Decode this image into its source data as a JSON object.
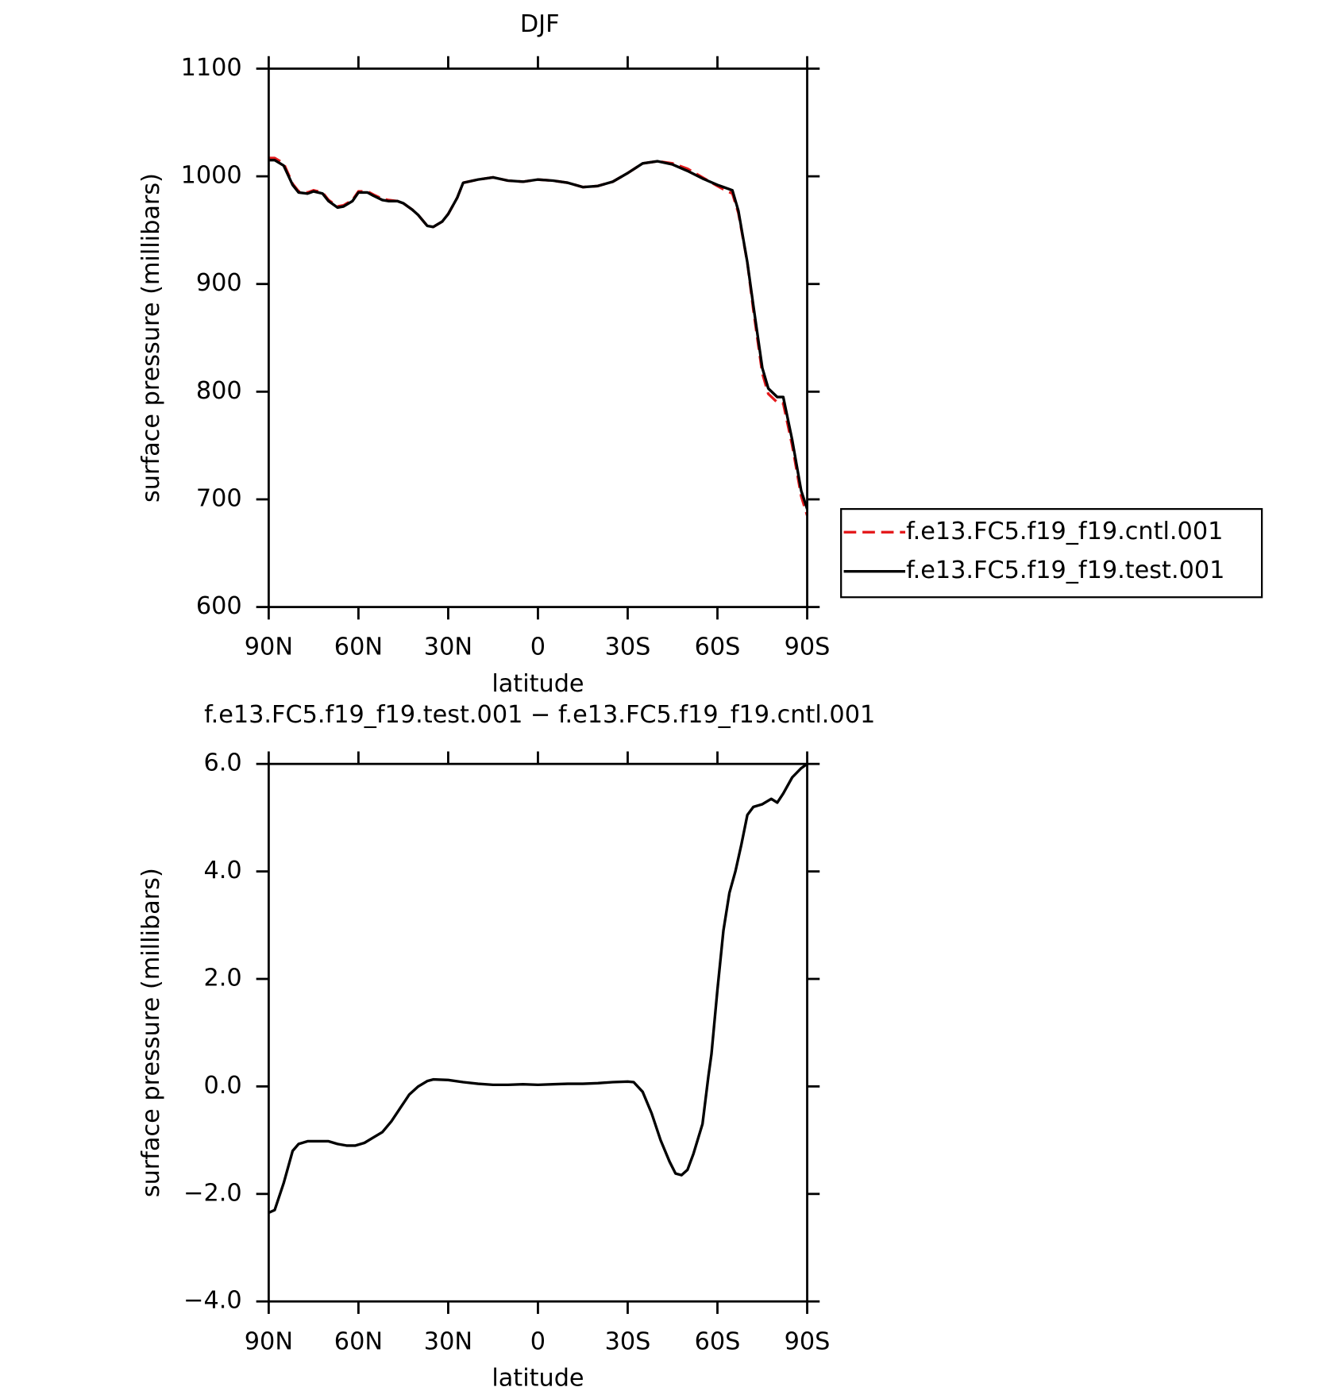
{
  "chart_data": [
    {
      "type": "line",
      "title": "DJF",
      "x_label": "latitude",
      "y_label": "surface pressure (millibars)",
      "x": [
        90,
        88,
        85,
        82,
        80,
        77,
        75,
        72,
        70,
        67,
        65,
        62,
        60,
        57,
        55,
        52,
        50,
        47,
        45,
        42,
        40,
        37,
        35,
        32,
        30,
        27,
        25,
        20,
        15,
        10,
        5,
        0,
        -5,
        -10,
        -15,
        -20,
        -25,
        -30,
        -35,
        -40,
        -45,
        -50,
        -55,
        -60,
        -62,
        -65,
        -67,
        -70,
        -72,
        -75,
        -77,
        -80,
        -82,
        -85,
        -88,
        -90
      ],
      "xlim": [
        90,
        -90
      ],
      "xticks": [
        {
          "value": 90,
          "label": "90N"
        },
        {
          "value": 60,
          "label": "60N"
        },
        {
          "value": 30,
          "label": "30N"
        },
        0,
        {
          "value": -30,
          "label": "30S"
        },
        {
          "value": -60,
          "label": "60S"
        },
        {
          "value": -90,
          "label": "90S"
        }
      ],
      "ylim": [
        600,
        1100
      ],
      "yticks": [
        600,
        700,
        800,
        900,
        1000,
        1100
      ],
      "legend": "outside-right",
      "series": [
        {
          "name": "f.e13.FC5.f19_f19.cntl.001",
          "color": "#e41a1c",
          "dash": true,
          "values": [
            1017,
            1017,
            1012,
            993,
            986,
            985,
            987,
            985,
            978,
            972,
            973,
            978,
            986,
            986,
            983,
            979,
            978,
            977,
            975,
            969,
            964,
            954,
            953,
            958,
            965,
            980,
            994,
            997,
            999,
            996,
            995,
            997,
            996,
            994,
            990,
            991,
            995,
            1003,
            1012,
            1014,
            1012,
            1007,
            999,
            991,
            988,
            984,
            966,
            920,
            876,
            817,
            798,
            790,
            789,
            750,
            703,
            685
          ]
        },
        {
          "name": "f.e13.FC5.f19_f19.test.001",
          "color": "#000000",
          "dash": false,
          "values": [
            1015,
            1015,
            1010,
            992,
            985,
            984,
            986,
            984,
            977,
            971,
            972,
            977,
            985,
            985,
            982,
            978,
            977,
            977,
            975,
            969,
            964,
            954,
            953,
            958,
            965,
            980,
            994,
            997,
            999,
            996,
            995,
            997,
            996,
            994,
            990,
            991,
            995,
            1003,
            1012,
            1014,
            1011,
            1005,
            998,
            992,
            990,
            987,
            968,
            920,
            880,
            822,
            803,
            795,
            795,
            755,
            708,
            691
          ]
        }
      ]
    },
    {
      "type": "line",
      "title": "f.e13.FC5.f19_f19.test.001 − f.e13.FC5.f19_f19.cntl.001",
      "x_label": "latitude",
      "y_label": "surface pressure (millibars)",
      "x": [
        90,
        88,
        85,
        82,
        80,
        77,
        72,
        70,
        67,
        64,
        61,
        58,
        55,
        52,
        49,
        46,
        43,
        40,
        37,
        35,
        30,
        25,
        20,
        15,
        10,
        5,
        0,
        -5,
        -10,
        -15,
        -20,
        -25,
        -30,
        -32,
        -35,
        -38,
        -41,
        -44,
        -46,
        -48,
        -50,
        -52,
        -55,
        -57,
        -58,
        -60,
        -62,
        -64,
        -66,
        -68,
        -70,
        -72,
        -75,
        -78,
        -80,
        -82,
        -85,
        -88,
        -90
      ],
      "xlim": [
        90,
        -90
      ],
      "xticks": [
        {
          "value": 90,
          "label": "90N"
        },
        {
          "value": 60,
          "label": "60N"
        },
        {
          "value": 30,
          "label": "30N"
        },
        0,
        {
          "value": -30,
          "label": "30S"
        },
        {
          "value": -60,
          "label": "60S"
        },
        {
          "value": -90,
          "label": "90S"
        }
      ],
      "ylim": [
        -4,
        6
      ],
      "yticks": [
        {
          "value": -4,
          "label": "−4.0"
        },
        {
          "value": -2,
          "label": "−2.0"
        },
        {
          "value": 0,
          "label": "0.0"
        },
        {
          "value": 2,
          "label": "2.0"
        },
        {
          "value": 4,
          "label": "4.0"
        },
        {
          "value": 6,
          "label": "6.0"
        }
      ],
      "series": [
        {
          "color": "#000000",
          "dash": false,
          "values": [
            -2.35,
            -2.3,
            -1.8,
            -1.2,
            -1.07,
            -1.02,
            -1.02,
            -1.02,
            -1.07,
            -1.1,
            -1.1,
            -1.05,
            -0.95,
            -0.85,
            -0.65,
            -0.4,
            -0.15,
            0.0,
            0.1,
            0.13,
            0.12,
            0.08,
            0.05,
            0.03,
            0.03,
            0.04,
            0.03,
            0.04,
            0.05,
            0.05,
            0.06,
            0.08,
            0.09,
            0.08,
            -0.1,
            -0.5,
            -1.0,
            -1.4,
            -1.62,
            -1.65,
            -1.55,
            -1.25,
            -0.7,
            0.2,
            0.6,
            1.8,
            2.9,
            3.6,
            4.0,
            4.5,
            5.05,
            5.2,
            5.25,
            5.35,
            5.28,
            5.45,
            5.75,
            5.92,
            6.0
          ]
        }
      ]
    }
  ]
}
